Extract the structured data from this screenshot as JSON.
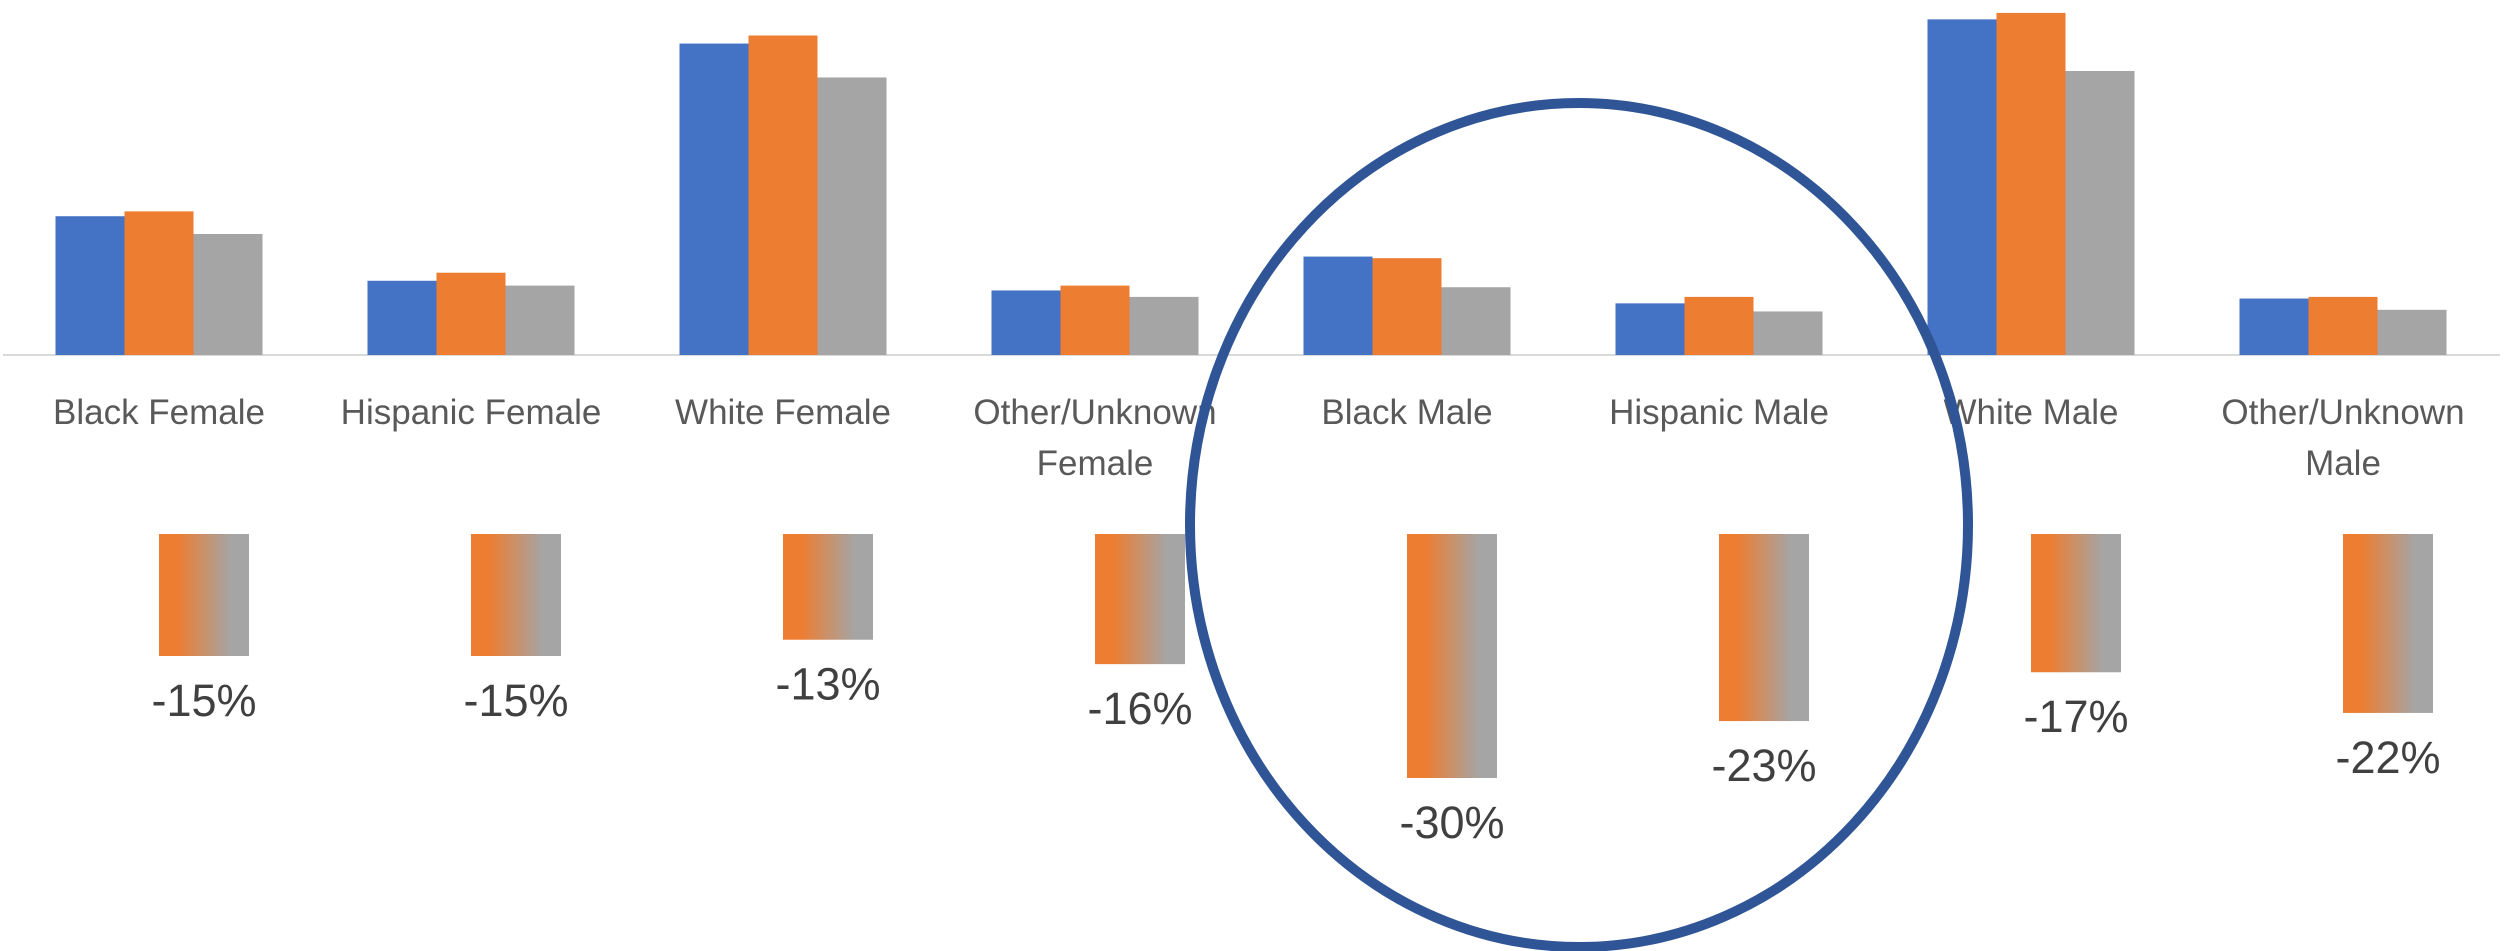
{
  "chart_data": [
    {
      "type": "bar",
      "categories": [
        "Black Female",
        "Hispanic Female",
        "White Female",
        "Other/Unknown Female",
        "Black Male",
        "Hispanic Male",
        "White Male",
        "Other/Unknown Male"
      ],
      "series": [
        {
          "color": "#4472c4",
          "values": [
            86,
            46,
            193,
            40,
            61,
            32,
            208,
            35
          ]
        },
        {
          "color": "#ed7d31",
          "values": [
            89,
            51,
            198,
            43,
            60,
            36,
            212,
            36
          ]
        },
        {
          "color": "#a5a5a5",
          "values": [
            75,
            43,
            172,
            36,
            42,
            27,
            176,
            28
          ]
        }
      ],
      "ylim": [
        0,
        220
      ]
    },
    {
      "type": "change",
      "values": [
        -15,
        -15,
        -13,
        -16,
        -30,
        -23,
        -17,
        -22
      ],
      "value_labels": [
        "-15%",
        "-15%",
        "-13%",
        "-16%",
        "-30%",
        "-23%",
        "-17%",
        "-22%"
      ],
      "colors": [
        "#ed7d31",
        "#a5a5a5"
      ],
      "ylim": [
        -50,
        0
      ]
    }
  ]
}
